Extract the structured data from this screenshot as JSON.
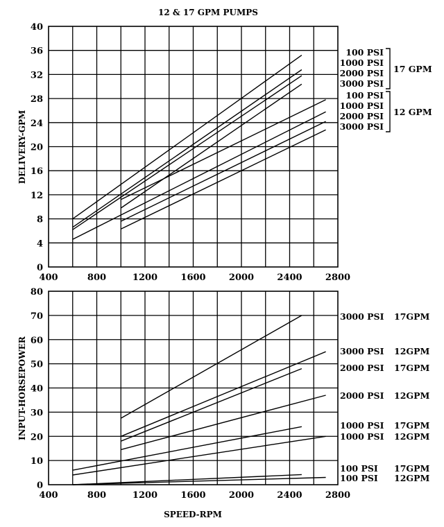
{
  "chart_data": [
    {
      "type": "line",
      "title": "12 & 17 GPM PUMPS",
      "xlabel": "",
      "ylabel": "DELIVERY-GPM",
      "xlim": [
        400,
        2800
      ],
      "ylim": [
        0,
        40
      ],
      "x_ticks": [
        "400",
        "800",
        "1200",
        "1600",
        "2000",
        "2400",
        "2800"
      ],
      "y_ticks": [
        "0",
        "4",
        "8",
        "12",
        "16",
        "20",
        "24",
        "28",
        "32",
        "36",
        "40"
      ],
      "grid": true,
      "legend_groups": [
        {
          "label": "17 GPM",
          "entries": [
            "100 PSI",
            "1000 PSI",
            "2000 PSI",
            "3000 PSI"
          ]
        },
        {
          "label": "12 GPM",
          "entries": [
            "100 PSI",
            "1000 PSI",
            "2000 PSI",
            "3000 PSI"
          ]
        }
      ],
      "series": [
        {
          "name": "17 GPM 100 PSI",
          "x": [
            600,
            2500
          ],
          "y": [
            8.0,
            35.2
          ]
        },
        {
          "name": "17 GPM 1000 PSI",
          "x": [
            600,
            2500
          ],
          "y": [
            6.6,
            32.8
          ]
        },
        {
          "name": "17 GPM 2000 PSI",
          "x": [
            600,
            2500
          ],
          "y": [
            6.2,
            31.8
          ]
        },
        {
          "name": "17 GPM 3000 PSI",
          "x": [
            1000,
            2500
          ],
          "y": [
            9.8,
            30.4
          ]
        },
        {
          "name": "12 GPM 100 PSI",
          "x": [
            1000,
            2700
          ],
          "y": [
            11.2,
            27.8
          ]
        },
        {
          "name": "12 GPM 1000 PSI",
          "x": [
            600,
            2700
          ],
          "y": [
            4.6,
            25.8
          ]
        },
        {
          "name": "12 GPM 2000 PSI",
          "x": [
            1000,
            2700
          ],
          "y": [
            7.6,
            24.2
          ]
        },
        {
          "name": "12 GPM 3000 PSI",
          "x": [
            1000,
            2700
          ],
          "y": [
            6.3,
            22.8
          ]
        }
      ]
    },
    {
      "type": "line",
      "title": "",
      "xlabel": "SPEED-RPM",
      "ylabel": "INPUT-HORSEPOWER",
      "xlim": [
        400,
        2800
      ],
      "ylim": [
        0,
        80
      ],
      "x_ticks": [
        "400",
        "800",
        "1200",
        "1600",
        "2000",
        "2400",
        "2800"
      ],
      "y_ticks": [
        "0",
        "10",
        "20",
        "30",
        "40",
        "50",
        "60",
        "70",
        "80"
      ],
      "grid": true,
      "series": [
        {
          "name": "3000 PSI 17GPM",
          "x": [
            1000,
            2500
          ],
          "y": [
            27.5,
            70.0
          ]
        },
        {
          "name": "3000 PSI 12GPM",
          "x": [
            1000,
            2700
          ],
          "y": [
            20.0,
            55.0
          ]
        },
        {
          "name": "2000 PSI 17GPM",
          "x": [
            1000,
            2500
          ],
          "y": [
            18.0,
            48.0
          ]
        },
        {
          "name": "2000 PSI 12GPM",
          "x": [
            1000,
            2700
          ],
          "y": [
            14.5,
            37.0
          ]
        },
        {
          "name": "1000 PSI 17GPM",
          "x": [
            600,
            2500
          ],
          "y": [
            6.0,
            24.0
          ]
        },
        {
          "name": "1000 PSI 12GPM",
          "x": [
            600,
            2700
          ],
          "y": [
            4.0,
            20.0
          ]
        },
        {
          "name": "100 PSI 17GPM",
          "x": [
            600,
            2500
          ],
          "y": [
            0.0,
            4.2
          ]
        },
        {
          "name": "100 PSI 12GPM",
          "x": [
            600,
            2700
          ],
          "y": [
            0.0,
            3.0
          ]
        }
      ],
      "legend_entries": [
        {
          "series": "3000 PSI 17GPM",
          "psi": "3000 PSI",
          "gpm": "17GPM"
        },
        {
          "series": "3000 PSI 12GPM",
          "psi": "3000 PSI",
          "gpm": "12GPM"
        },
        {
          "series": "2000 PSI 17GPM",
          "psi": "2000 PSI",
          "gpm": "17GPM"
        },
        {
          "series": "2000 PSI 12GPM",
          "psi": "2000 PSI",
          "gpm": "12GPM"
        },
        {
          "series": "1000 PSI 17GPM",
          "psi": "1000 PSI",
          "gpm": "17GPM"
        },
        {
          "series": "1000 PSI 12GPM",
          "psi": "1000 PSI",
          "gpm": "12GPM"
        },
        {
          "series": "100 PSI 17GPM",
          "psi": "100 PSI",
          "gpm": "17GPM"
        },
        {
          "series": "100 PSI 12GPM",
          "psi": "100 PSI",
          "gpm": "12GPM"
        }
      ]
    }
  ]
}
